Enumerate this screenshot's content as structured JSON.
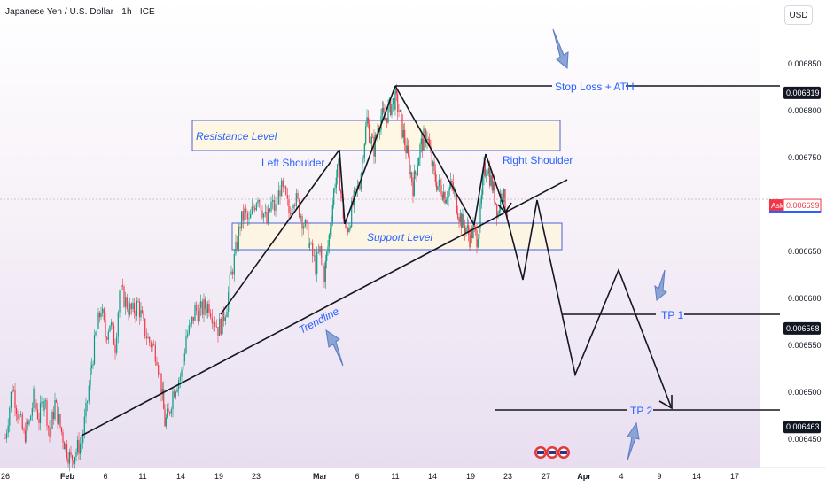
{
  "header": {
    "symbol": "Japanese Yen / U.S. Dollar · 1h · ICE",
    "currency": "USD"
  },
  "chart_data": {
    "type": "candlestick",
    "y_axis": {
      "range": [
        0.00642,
        0.00689
      ],
      "ticks": [
        0.00645,
        0.0065,
        0.00655,
        0.0066,
        0.00665,
        0.0067,
        0.00675,
        0.0068,
        0.00685
      ],
      "tick_labels": [
        "0.006450",
        "0.006500",
        "0.006550",
        "0.006600",
        "0.006650",
        "0.006700",
        "0.006750",
        "0.006800",
        "0.006850"
      ]
    },
    "x_axis": {
      "tick_labels": [
        "26",
        "Feb",
        "6",
        "11",
        "14",
        "19",
        "23",
        "Mar",
        "6",
        "11",
        "14",
        "19",
        "23",
        "27",
        "Apr",
        "4",
        "9",
        "14",
        "17"
      ],
      "tick_positions": [
        6,
        76,
        119,
        161,
        204,
        247,
        289,
        361,
        403,
        446,
        488,
        531,
        573,
        616,
        659,
        701,
        744,
        786,
        829
      ]
    },
    "price_markers": [
      {
        "label": "0.006819",
        "value": 0.006819,
        "kind": "level"
      },
      {
        "label": "Ask",
        "value_label": "0.006699",
        "value": 0.006699,
        "kind": "ask"
      },
      {
        "label": "0.006568",
        "value": 0.006568,
        "kind": "level"
      },
      {
        "label": "0.006463",
        "value": 0.006463,
        "kind": "level"
      }
    ],
    "price_path": [
      [
        6,
        0.006451
      ],
      [
        14,
        0.006508
      ],
      [
        20,
        0.006478
      ],
      [
        27,
        0.006453
      ],
      [
        33,
        0.006467
      ],
      [
        38,
        0.006494
      ],
      [
        44,
        0.006472
      ],
      [
        50,
        0.006497
      ],
      [
        56,
        0.006453
      ],
      [
        62,
        0.006488
      ],
      [
        68,
        0.006463
      ],
      [
        74,
        0.006442
      ],
      [
        80,
        0.006428
      ],
      [
        86,
        0.006438
      ],
      [
        92,
        0.006447
      ],
      [
        97,
        0.006478
      ],
      [
        102,
        0.00652
      ],
      [
        108,
        0.00656
      ],
      [
        114,
        0.00659
      ],
      [
        119,
        0.00656
      ],
      [
        124,
        0.006575
      ],
      [
        130,
        0.00655
      ],
      [
        135,
        0.006608
      ],
      [
        140,
        0.0066
      ],
      [
        145,
        0.00659
      ],
      [
        150,
        0.006585
      ],
      [
        156,
        0.006594
      ],
      [
        162,
        0.00657
      ],
      [
        167,
        0.006556
      ],
      [
        172,
        0.00655
      ],
      [
        177,
        0.00654
      ],
      [
        182,
        0.006505
      ],
      [
        186,
        0.006468
      ],
      [
        190,
        0.006475
      ],
      [
        195,
        0.0065
      ],
      [
        200,
        0.006512
      ],
      [
        205,
        0.00652
      ],
      [
        210,
        0.00656
      ],
      [
        215,
        0.006568
      ],
      [
        220,
        0.006588
      ],
      [
        225,
        0.006585
      ],
      [
        230,
        0.00659
      ],
      [
        236,
        0.006593
      ],
      [
        241,
        0.00658
      ],
      [
        246,
        0.006568
      ],
      [
        251,
        0.006575
      ],
      [
        256,
        0.006595
      ],
      [
        261,
        0.006625
      ],
      [
        266,
        0.00665
      ],
      [
        271,
        0.00668
      ],
      [
        276,
        0.00669
      ],
      [
        281,
        0.00668
      ],
      [
        286,
        0.006697
      ],
      [
        291,
        0.006712
      ],
      [
        296,
        0.006695
      ],
      [
        301,
        0.00668
      ],
      [
        306,
        0.0067
      ],
      [
        311,
        0.006695
      ],
      [
        316,
        0.006718
      ],
      [
        321,
        0.00671
      ],
      [
        326,
        0.006692
      ],
      [
        331,
        0.00671
      ],
      [
        336,
        0.0067
      ],
      [
        341,
        0.006685
      ],
      [
        346,
        0.00667
      ],
      [
        351,
        0.00665
      ],
      [
        356,
        0.006635
      ],
      [
        361,
        0.00665
      ],
      [
        366,
        0.006625
      ],
      [
        370,
        0.006655
      ],
      [
        374,
        0.00669
      ],
      [
        378,
        0.006725
      ],
      [
        382,
        0.006738
      ],
      [
        386,
        0.0067
      ],
      [
        390,
        0.00667
      ],
      [
        394,
        0.00668
      ],
      [
        398,
        0.0067
      ],
      [
        402,
        0.006712
      ],
      [
        406,
        0.006725
      ],
      [
        410,
        0.00676
      ],
      [
        414,
        0.00679
      ],
      [
        418,
        0.00677
      ],
      [
        422,
        0.00676
      ],
      [
        426,
        0.00678
      ],
      [
        430,
        0.006795
      ],
      [
        434,
        0.00679
      ],
      [
        438,
        0.0068
      ],
      [
        442,
        0.006807
      ],
      [
        446,
        0.006813
      ],
      [
        450,
        0.0068
      ],
      [
        454,
        0.00678
      ],
      [
        458,
        0.00676
      ],
      [
        462,
        0.00674
      ],
      [
        466,
        0.00672
      ],
      [
        470,
        0.00674
      ],
      [
        474,
        0.00676
      ],
      [
        478,
        0.00677
      ],
      [
        482,
        0.006775
      ],
      [
        486,
        0.00675
      ],
      [
        490,
        0.00673
      ],
      [
        494,
        0.00672
      ],
      [
        498,
        0.006718
      ],
      [
        502,
        0.00671
      ],
      [
        506,
        0.006715
      ],
      [
        510,
        0.00672
      ],
      [
        514,
        0.006705
      ],
      [
        518,
        0.00669
      ],
      [
        522,
        0.00668
      ],
      [
        526,
        0.006675
      ],
      [
        530,
        0.006665
      ],
      [
        534,
        0.006672
      ],
      [
        538,
        0.006665
      ],
      [
        542,
        0.00669
      ],
      [
        546,
        0.006735
      ],
      [
        550,
        0.006742
      ],
      [
        554,
        0.006725
      ],
      [
        558,
        0.00671
      ],
      [
        562,
        0.00669
      ],
      [
        566,
        0.006718
      ],
      [
        570,
        0.0067
      ],
      [
        574,
        0.00669
      ]
    ],
    "annotations": {
      "resistance_label": "Resistance Level",
      "support_label": "Support Level",
      "left_shoulder": "Left Shoulder",
      "right_shoulder": "Right Shoulder",
      "trendline_label": "Trendline",
      "stop_loss_label": "Stop Loss + ATH",
      "tp1_label": "TP 1",
      "tp2_label": "TP 2"
    },
    "colors": {
      "up": "#089981",
      "down": "#f23645",
      "annotation": "#2962ff",
      "box_fill": "#fff7dc",
      "box_border": "#4a63d8",
      "background_top": "#ffffff",
      "background_bottom": "#e8def0"
    }
  }
}
